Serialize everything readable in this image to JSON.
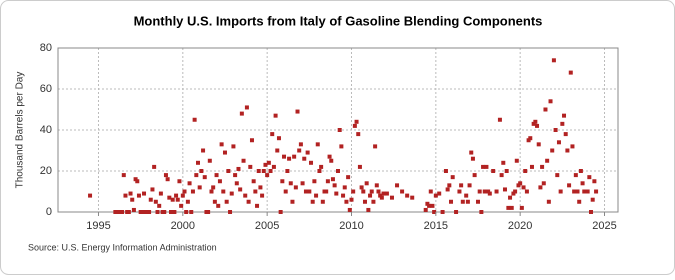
{
  "chart_data": {
    "type": "scatter",
    "title": "Monthly U.S. Imports from Italy of Gasoline Blending Components",
    "y_label": "Thousand Barrels per Day",
    "source": "Source: U.S. Energy Information Administration",
    "color": "#b22222",
    "grid": true,
    "xlim": [
      1992.6,
      2025.8
    ],
    "xticks": [
      1995,
      2000,
      2005,
      2010,
      2015,
      2020,
      2025
    ],
    "ylim": [
      0,
      80
    ],
    "yticks": [
      0,
      20,
      40,
      60,
      80
    ],
    "x": [
      1994.5,
      1996.0,
      1996.1,
      1996.2,
      1996.3,
      1996.4,
      1996.5,
      1996.6,
      1996.7,
      1996.8,
      1996.9,
      1997.0,
      1997.1,
      1997.2,
      1997.3,
      1997.4,
      1997.5,
      1997.6,
      1997.7,
      1997.8,
      1997.9,
      1998.0,
      1998.1,
      1998.2,
      1998.3,
      1998.4,
      1998.5,
      1998.6,
      1998.7,
      1998.8,
      1998.9,
      1999.0,
      1999.1,
      1999.2,
      1999.3,
      1999.4,
      1999.5,
      1999.6,
      1999.7,
      1999.8,
      1999.9,
      2000.0,
      2000.1,
      2000.2,
      2000.3,
      2000.4,
      2000.5,
      2000.6,
      2000.7,
      2000.8,
      2000.9,
      2001.0,
      2001.1,
      2001.2,
      2001.3,
      2001.4,
      2001.5,
      2001.6,
      2001.7,
      2001.8,
      2001.9,
      2002.0,
      2002.1,
      2002.2,
      2002.3,
      2002.4,
      2002.5,
      2002.6,
      2002.7,
      2002.8,
      2002.9,
      2003.0,
      2003.1,
      2003.2,
      2003.3,
      2003.4,
      2003.5,
      2003.6,
      2003.7,
      2003.8,
      2003.9,
      2004.0,
      2004.1,
      2004.2,
      2004.3,
      2004.4,
      2004.5,
      2004.6,
      2004.7,
      2004.8,
      2004.9,
      2005.0,
      2005.1,
      2005.2,
      2005.3,
      2005.4,
      2005.5,
      2005.6,
      2005.7,
      2005.8,
      2005.9,
      2006.0,
      2006.1,
      2006.2,
      2006.3,
      2006.4,
      2006.5,
      2006.6,
      2006.7,
      2006.8,
      2006.9,
      2007.0,
      2007.1,
      2007.2,
      2007.3,
      2007.4,
      2007.5,
      2007.6,
      2007.7,
      2007.8,
      2007.9,
      2008.0,
      2008.1,
      2008.2,
      2008.3,
      2008.4,
      2008.5,
      2008.6,
      2008.7,
      2008.8,
      2008.9,
      2009.0,
      2009.1,
      2009.2,
      2009.3,
      2009.4,
      2009.5,
      2009.6,
      2009.7,
      2009.8,
      2009.9,
      2010.0,
      2010.1,
      2010.2,
      2010.3,
      2010.4,
      2010.5,
      2010.6,
      2010.7,
      2010.8,
      2010.9,
      2011.0,
      2011.1,
      2011.2,
      2011.3,
      2011.4,
      2011.5,
      2011.6,
      2011.7,
      2011.8,
      2011.9,
      2012.1,
      2012.4,
      2012.7,
      2013.0,
      2013.3,
      2013.6,
      2014.4,
      2014.5,
      2014.6,
      2014.7,
      2014.8,
      2014.9,
      2015.0,
      2015.2,
      2015.4,
      2015.6,
      2015.7,
      2015.8,
      2015.9,
      2016.0,
      2016.2,
      2016.4,
      2016.5,
      2016.6,
      2016.8,
      2016.9,
      2017.0,
      2017.1,
      2017.2,
      2017.3,
      2017.5,
      2017.6,
      2017.7,
      2017.8,
      2017.9,
      2018.0,
      2018.1,
      2018.2,
      2018.4,
      2018.6,
      2018.8,
      2018.9,
      2019.0,
      2019.1,
      2019.2,
      2019.3,
      2019.4,
      2019.5,
      2019.6,
      2019.7,
      2019.8,
      2019.9,
      2020.0,
      2020.1,
      2020.2,
      2020.3,
      2020.4,
      2020.5,
      2020.6,
      2020.7,
      2020.8,
      2020.9,
      2021.0,
      2021.1,
      2021.2,
      2021.3,
      2021.4,
      2021.5,
      2021.6,
      2021.7,
      2021.8,
      2021.9,
      2022.0,
      2022.1,
      2022.2,
      2022.3,
      2022.4,
      2022.5,
      2022.6,
      2022.7,
      2022.8,
      2022.9,
      2023.0,
      2023.1,
      2023.2,
      2023.3,
      2023.4,
      2023.5,
      2023.6,
      2023.7,
      2023.8,
      2023.9,
      2024.0,
      2024.1,
      2024.2,
      2024.3,
      2024.4,
      2024.5
    ],
    "values": [
      8,
      0,
      0,
      0,
      0,
      0,
      18,
      8,
      0,
      0,
      9,
      6,
      1,
      16,
      15,
      8,
      0,
      0,
      9,
      0,
      0,
      0,
      6,
      11,
      22,
      5,
      0,
      3,
      9,
      0,
      0,
      18,
      16,
      7,
      0,
      6,
      0,
      8,
      6,
      15,
      3,
      8,
      10,
      0,
      5,
      14,
      0,
      10,
      45,
      18,
      24,
      12,
      20,
      30,
      17,
      0,
      0,
      25,
      10,
      12,
      5,
      18,
      3,
      15,
      33,
      10,
      29,
      5,
      20,
      0,
      9,
      32,
      18,
      14,
      21,
      11,
      48,
      25,
      8,
      51,
      5,
      22,
      35,
      15,
      10,
      3,
      20,
      12,
      8,
      20,
      23,
      18,
      24,
      20,
      38,
      22,
      47,
      30,
      36,
      0,
      15,
      27,
      10,
      20,
      26,
      14,
      5,
      27,
      12,
      49,
      30,
      33,
      14,
      26,
      10,
      29,
      10,
      24,
      5,
      15,
      8,
      33,
      20,
      22,
      5,
      10,
      10,
      15,
      27,
      25,
      16,
      13,
      9,
      20,
      40,
      32,
      8,
      12,
      5,
      17,
      1,
      6,
      10,
      42,
      44,
      38,
      22,
      12,
      10,
      5,
      14,
      1,
      8,
      10,
      5,
      32,
      13,
      10,
      8,
      7,
      9,
      9,
      7,
      13,
      10,
      8,
      7,
      1,
      4,
      3,
      10,
      3,
      0,
      8,
      9,
      0,
      20,
      11,
      13,
      5,
      17,
      0,
      10,
      13,
      5,
      8,
      5,
      13,
      29,
      26,
      18,
      5,
      10,
      0,
      22,
      10,
      22,
      10,
      9,
      20,
      10,
      45,
      18,
      24,
      11,
      20,
      2,
      7,
      2,
      9,
      10,
      25,
      13,
      14,
      2,
      12,
      20,
      10,
      35,
      36,
      22,
      43,
      44,
      42,
      33,
      12,
      22,
      14,
      50,
      25,
      5,
      54,
      30,
      74,
      40,
      18,
      34,
      10,
      43,
      47,
      38,
      30,
      13,
      68,
      32,
      10,
      18,
      10,
      5,
      20,
      14,
      10,
      10,
      10,
      17,
      0,
      6,
      15,
      10
    ]
  }
}
